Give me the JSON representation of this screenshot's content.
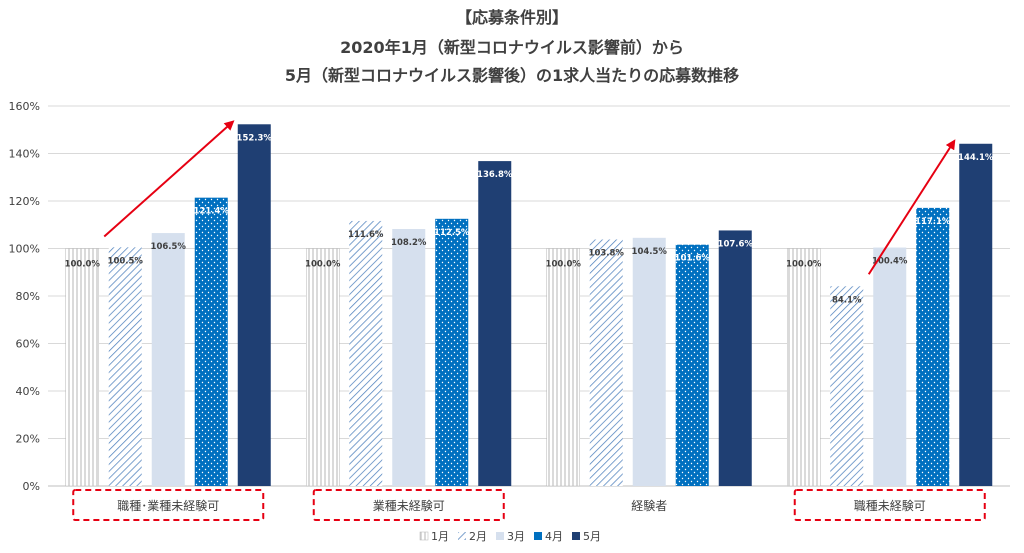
{
  "chart_data": {
    "type": "bar",
    "title": [
      "【応募条件別】",
      "2020年1月（新型コロナウイルス影響前）から",
      "5月（新型コロナウイルス影響後）の1求人当たりの応募数推移"
    ],
    "categories": [
      "職種･業種未経験可",
      "業種未経験可",
      "経験者",
      "職種未経験可"
    ],
    "series": [
      {
        "name": "1月",
        "values": [
          100.0,
          100.0,
          100.0,
          100.0
        ],
        "labels": [
          "100.0%",
          "100.0%",
          "100.0%",
          "100.0%"
        ]
      },
      {
        "name": "2月",
        "values": [
          100.5,
          111.6,
          103.8,
          84.1
        ],
        "labels": [
          "100.5%",
          "111.6%",
          "103.8%",
          "84.1%"
        ]
      },
      {
        "name": "3月",
        "values": [
          106.5,
          108.2,
          104.5,
          100.4
        ],
        "labels": [
          "106.5%",
          "108.2%",
          "104.5%",
          "100.4%"
        ]
      },
      {
        "name": "4月",
        "values": [
          121.4,
          112.5,
          101.6,
          117.1
        ],
        "labels": [
          "121.4%",
          "112.5%",
          "101.6%",
          "117.1%"
        ]
      },
      {
        "name": "5月",
        "values": [
          152.3,
          136.8,
          107.6,
          144.1
        ],
        "labels": [
          "152.3%",
          "136.8%",
          "107.6%",
          "144.1%"
        ]
      }
    ],
    "yticks": [
      "0%",
      "20%",
      "40%",
      "60%",
      "80%",
      "100%",
      "120%",
      "140%",
      "160%"
    ],
    "ylim": [
      0,
      160
    ],
    "grid": true,
    "legend_position": "bottom",
    "highlighted_categories": [
      "職種･業種未経験可",
      "業種未経験可",
      "職種未経験可"
    ],
    "trend_arrows": [
      {
        "category": "職種･業種未経験可",
        "from": "1月",
        "to": "5月"
      },
      {
        "category": "職種未経験可",
        "from": "2月",
        "to": "5月"
      }
    ],
    "colors": {
      "m1": "#bfbfbf",
      "m2": "#4f81bd",
      "m3": "#d6e0ee",
      "m4": "#0070c0",
      "m5": "#1f3f73",
      "arrow": "#e60012",
      "highlight": "#e60012"
    }
  }
}
